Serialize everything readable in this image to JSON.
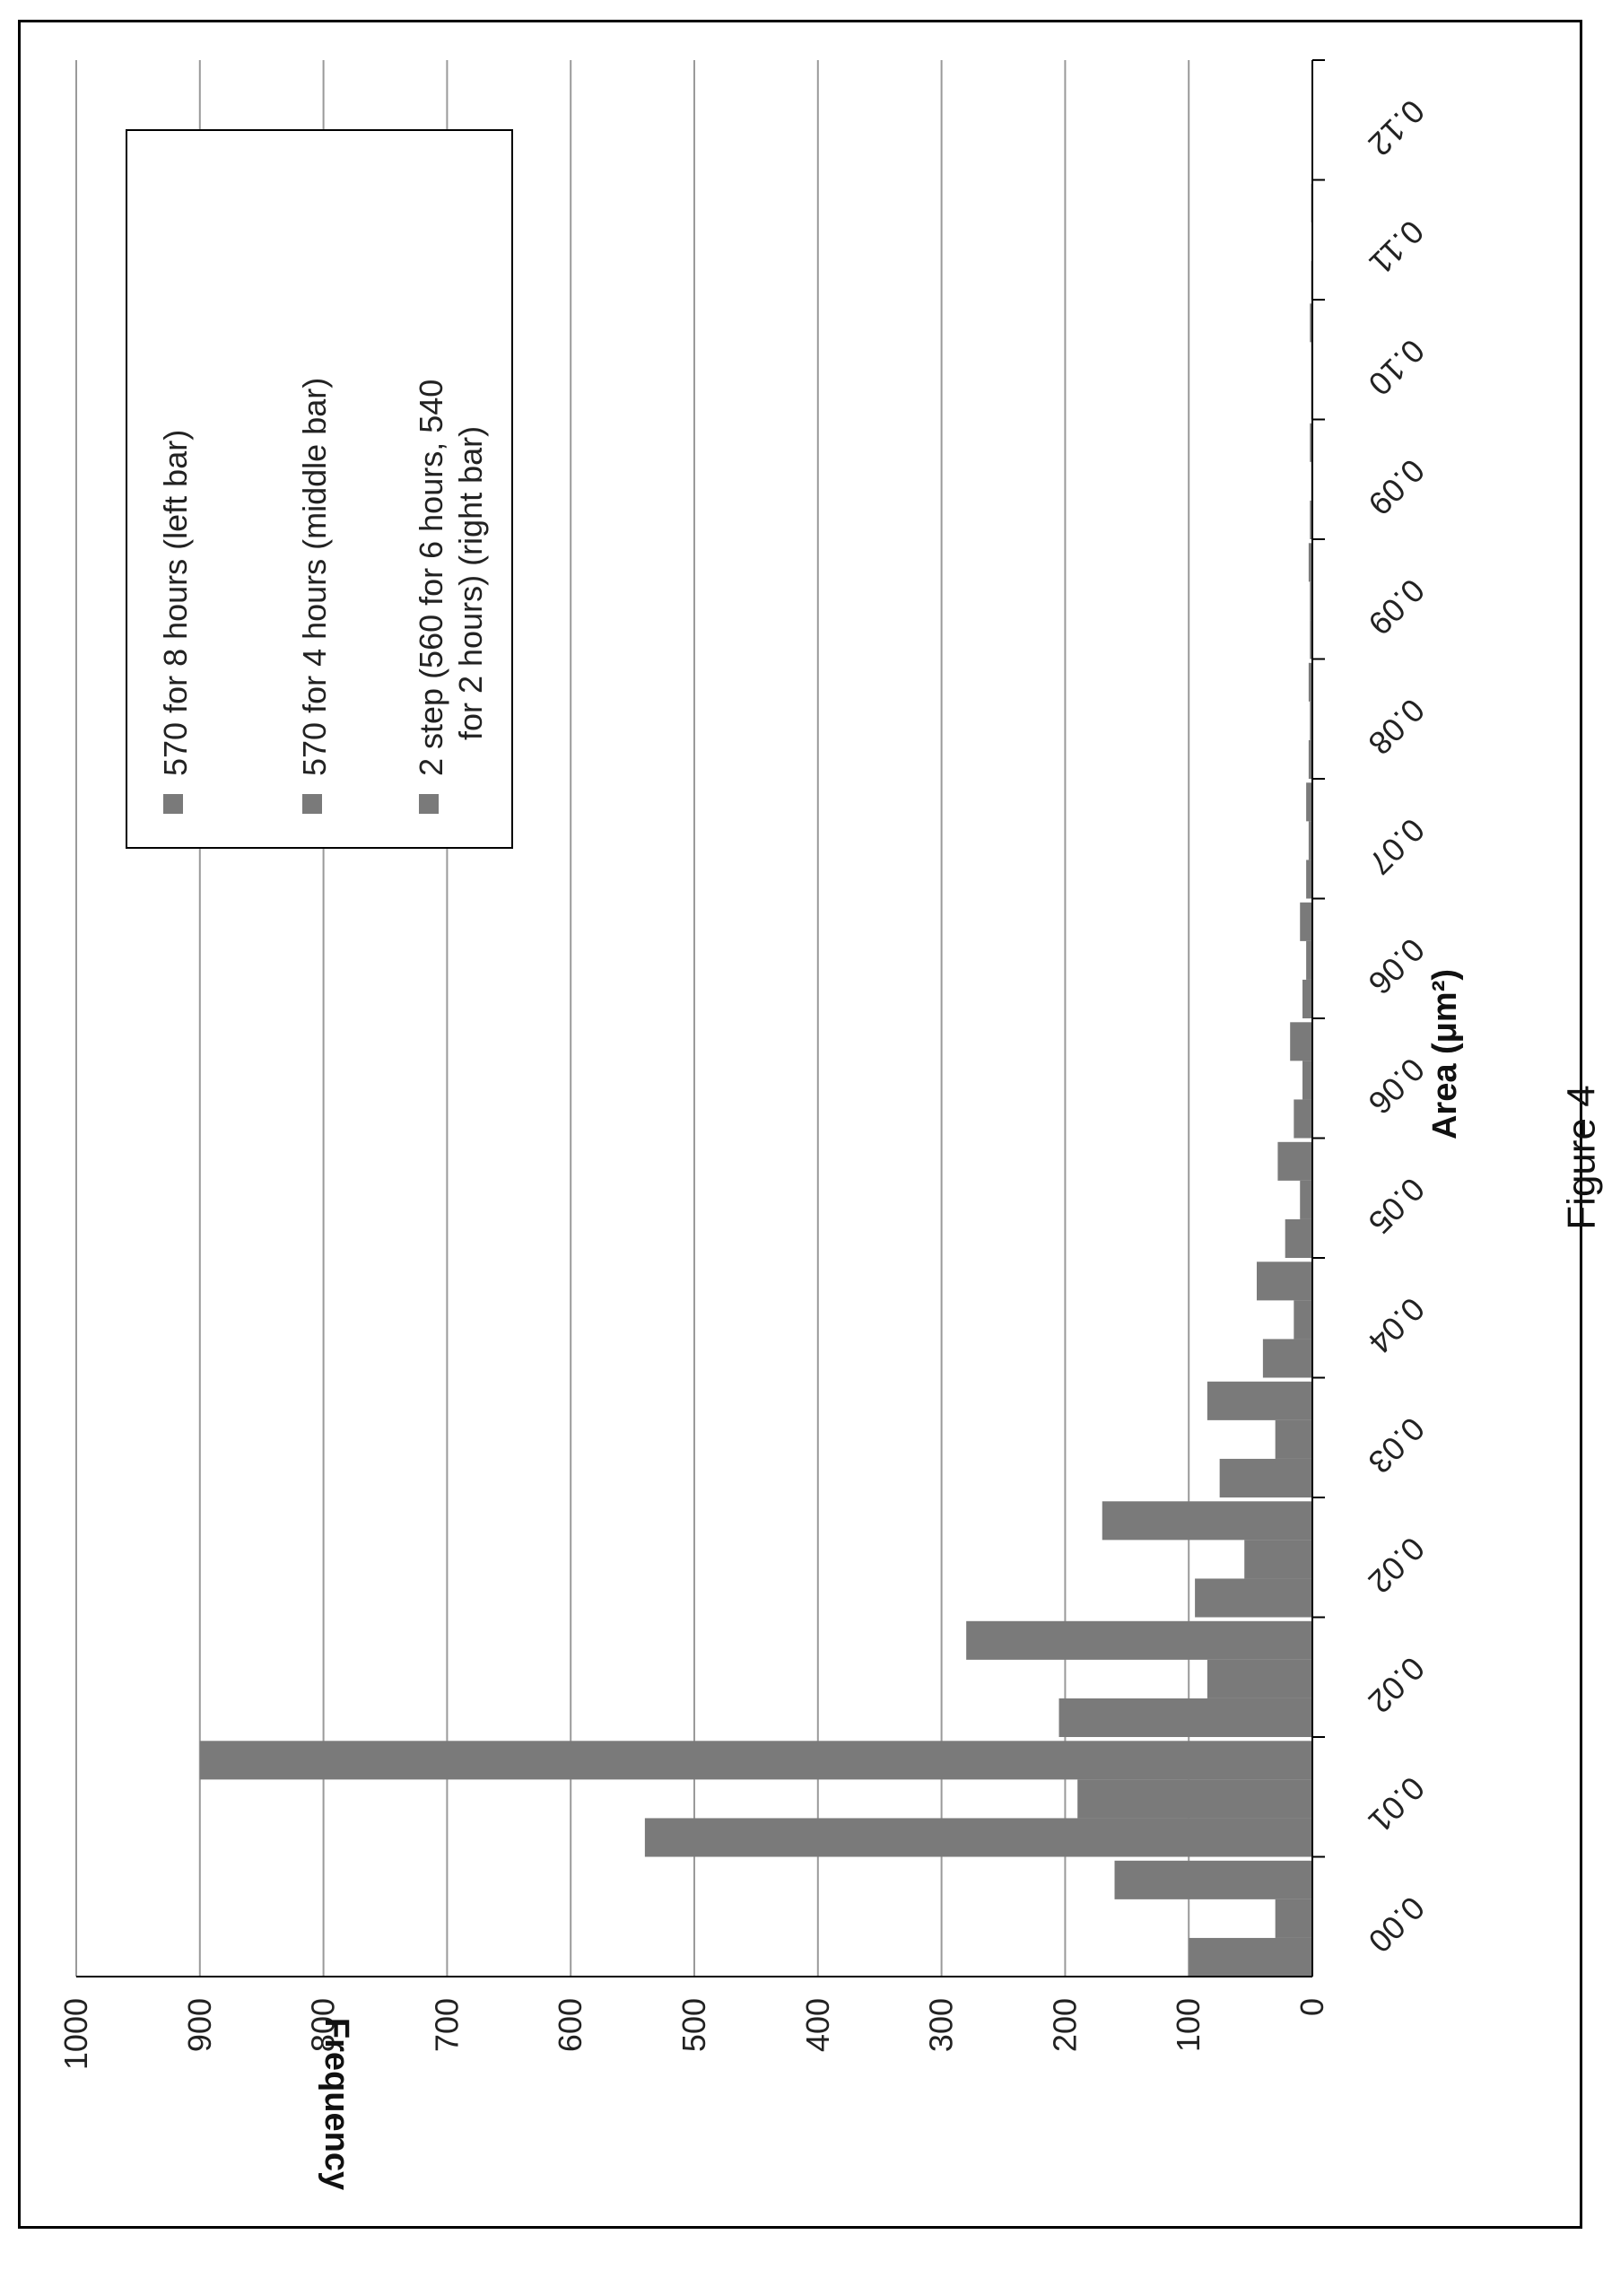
{
  "figure_caption": "Figure 4",
  "chart_data": {
    "type": "bar",
    "orientation": "rotated-90",
    "xlabel": "Area (μm²)",
    "ylabel": "Frequency",
    "ylim": [
      0,
      1000
    ],
    "yticks": [
      "0",
      "100",
      "200",
      "300",
      "400",
      "500",
      "600",
      "700",
      "800",
      "900",
      "1000"
    ],
    "categories": [
      "0.00",
      "0.01",
      "0.02",
      "0.02",
      "0.03",
      "0.04",
      "0.05",
      "0.06",
      "0.06",
      "0.07",
      "0.08",
      "0.09",
      "0.09",
      "0.10",
      "0.11",
      "0.12"
    ],
    "grid": true,
    "legend_position": "top-right",
    "series": [
      {
        "name": "570 for 8 hours (left bar)",
        "color": "#7a7a7a",
        "values": [
          100,
          540,
          205,
          95,
          75,
          40,
          22,
          15,
          8,
          5,
          3,
          2,
          2,
          1,
          1,
          0
        ]
      },
      {
        "name": "570 for 4 hours  (middle bar)",
        "color": "#7a7a7a",
        "values": [
          30,
          190,
          85,
          55,
          30,
          15,
          10,
          8,
          5,
          3,
          2,
          2,
          1,
          1,
          0,
          0
        ]
      },
      {
        "name": "2 step (560 for 6 hours, 540 for 2 hours) (right bar)",
        "color": "#7a7a7a",
        "values": [
          160,
          900,
          280,
          170,
          85,
          45,
          28,
          18,
          10,
          5,
          3,
          3,
          2,
          2,
          1,
          0
        ]
      }
    ]
  }
}
